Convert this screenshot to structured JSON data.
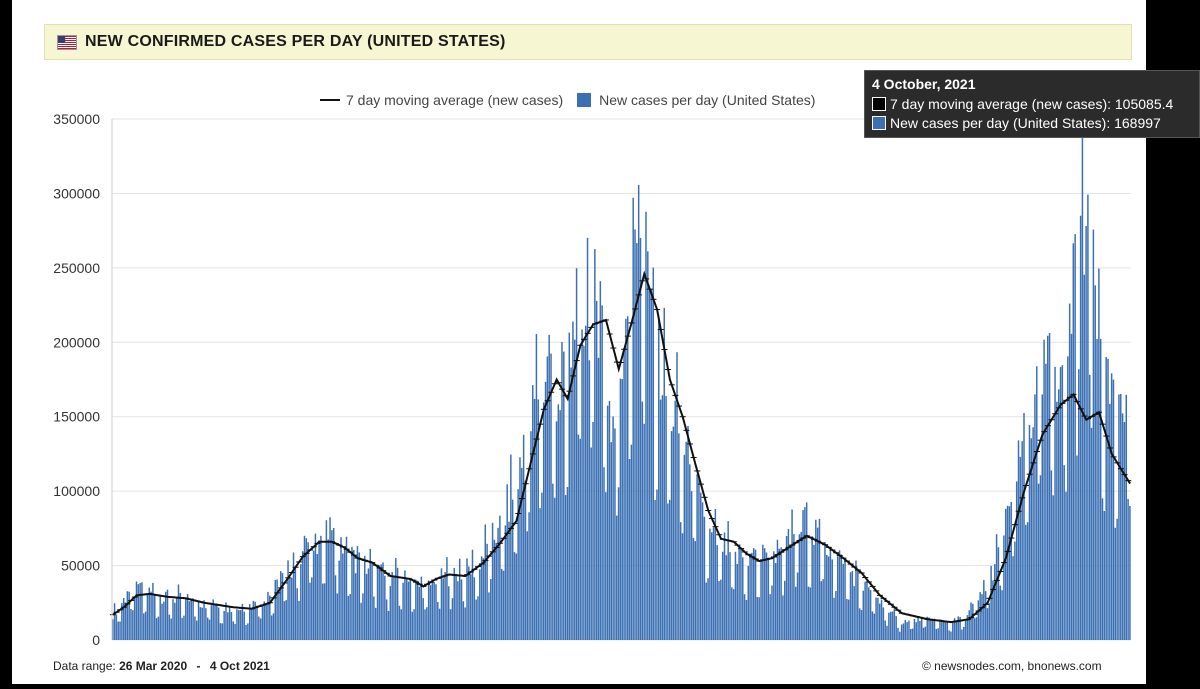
{
  "header": {
    "title": "NEW CONFIRMED CASES PER DAY (UNITED STATES)",
    "flag_icon": "us-flag-icon"
  },
  "legend": {
    "average_label": "7 day moving average (new cases)",
    "daily_label": "New cases per day (United States)"
  },
  "tooltip": {
    "date": "4 October, 2021",
    "average_row": "7 day moving average (new cases): 105085.4",
    "daily_row": "New cases per day (United States): 168997"
  },
  "footer": {
    "range_label": "Data range:",
    "range_start": "26 Mar 2020",
    "range_dash": "-",
    "range_end": "4 Oct 2021",
    "copyright": "©  newsnodes.com, bnonews.com"
  },
  "colors": {
    "bar": "#3a6fb3",
    "bar_edge": "#d8e2f0",
    "average_line": "#111111",
    "title_bg": "#f6f6d2",
    "tooltip_bg": "#2b2b2b"
  },
  "chart_data": {
    "type": "bar",
    "title": "NEW CONFIRMED CASES PER DAY (UNITED STATES)",
    "xlabel": "",
    "ylabel": "",
    "ylim": [
      0,
      350000
    ],
    "y_ticks": [
      0,
      50000,
      100000,
      150000,
      200000,
      250000,
      300000,
      350000
    ],
    "x_range": [
      "2020-03-26",
      "2021-10-04"
    ],
    "grid": true,
    "legend_position": "top",
    "series": [
      {
        "name": "New cases per day (United States)",
        "type": "bar",
        "daily_values_description": "one bar per day from 26 Mar 2020 to 4 Oct 2021",
        "points": [
          [
            "2020-03-26",
            17000
          ],
          [
            "2020-04-04",
            32000
          ],
          [
            "2020-04-10",
            34000
          ],
          [
            "2020-04-24",
            29000
          ],
          [
            "2020-05-15",
            25000
          ],
          [
            "2020-06-05",
            21000
          ],
          [
            "2020-06-20",
            30000
          ],
          [
            "2020-07-01",
            48000
          ],
          [
            "2020-07-10",
            63000
          ],
          [
            "2020-07-17",
            70000
          ],
          [
            "2020-07-24",
            70000
          ],
          [
            "2020-08-05",
            55000
          ],
          [
            "2020-08-20",
            44000
          ],
          [
            "2020-09-05",
            40000
          ],
          [
            "2020-09-12",
            34000
          ],
          [
            "2020-09-26",
            44000
          ],
          [
            "2020-10-10",
            48000
          ],
          [
            "2020-10-24",
            75000
          ],
          [
            "2020-11-06",
            120000
          ],
          [
            "2020-11-13",
            165000
          ],
          [
            "2020-11-20",
            185000
          ],
          [
            "2020-11-27",
            160000
          ],
          [
            "2020-12-04",
            210000
          ],
          [
            "2020-12-10",
            225000
          ],
          [
            "2020-12-18",
            230000
          ],
          [
            "2020-12-25",
            130000
          ],
          [
            "2021-01-02",
            230000
          ],
          [
            "2021-01-08",
            294000
          ],
          [
            "2021-01-15",
            220000
          ],
          [
            "2021-01-22",
            170000
          ],
          [
            "2021-01-29",
            145000
          ],
          [
            "2021-02-05",
            120000
          ],
          [
            "2021-02-15",
            70000
          ],
          [
            "2021-02-22",
            65000
          ],
          [
            "2021-03-01",
            55000
          ],
          [
            "2021-03-15",
            55000
          ],
          [
            "2021-04-01",
            65000
          ],
          [
            "2021-04-10",
            80000
          ],
          [
            "2021-04-20",
            65000
          ],
          [
            "2021-05-01",
            50000
          ],
          [
            "2021-05-15",
            32000
          ],
          [
            "2021-05-31",
            12000
          ],
          [
            "2021-06-15",
            14000
          ],
          [
            "2021-06-28",
            12000
          ],
          [
            "2021-07-05",
            14000
          ],
          [
            "2021-07-15",
            30000
          ],
          [
            "2021-07-25",
            60000
          ],
          [
            "2021-08-05",
            120000
          ],
          [
            "2021-08-15",
            170000
          ],
          [
            "2021-08-24",
            185000
          ],
          [
            "2021-08-31",
            190000
          ],
          [
            "2021-09-07",
            303000
          ],
          [
            "2021-09-14",
            265000
          ],
          [
            "2021-09-21",
            180000
          ],
          [
            "2021-09-28",
            140000
          ],
          [
            "2021-10-04",
            168997
          ]
        ]
      },
      {
        "name": "7 day moving average (new cases)",
        "type": "line",
        "points": [
          [
            "2020-03-26",
            17000
          ],
          [
            "2020-04-01",
            22000
          ],
          [
            "2020-04-08",
            30000
          ],
          [
            "2020-04-15",
            31000
          ],
          [
            "2020-04-25",
            29000
          ],
          [
            "2020-05-05",
            28000
          ],
          [
            "2020-05-15",
            25000
          ],
          [
            "2020-05-31",
            22000
          ],
          [
            "2020-06-10",
            21000
          ],
          [
            "2020-06-20",
            25000
          ],
          [
            "2020-06-29",
            40000
          ],
          [
            "2020-07-08",
            56000
          ],
          [
            "2020-07-17",
            66000
          ],
          [
            "2020-07-24",
            66000
          ],
          [
            "2020-07-31",
            62000
          ],
          [
            "2020-08-07",
            55000
          ],
          [
            "2020-08-15",
            52000
          ],
          [
            "2020-08-25",
            43000
          ],
          [
            "2020-09-05",
            41000
          ],
          [
            "2020-09-12",
            36000
          ],
          [
            "2020-09-19",
            41000
          ],
          [
            "2020-09-26",
            44000
          ],
          [
            "2020-10-05",
            43000
          ],
          [
            "2020-10-15",
            52000
          ],
          [
            "2020-10-24",
            65000
          ],
          [
            "2020-11-02",
            80000
          ],
          [
            "2020-11-10",
            120000
          ],
          [
            "2020-11-17",
            155000
          ],
          [
            "2020-11-24",
            175000
          ],
          [
            "2020-11-30",
            162000
          ],
          [
            "2020-12-07",
            198000
          ],
          [
            "2020-12-14",
            212000
          ],
          [
            "2020-12-21",
            215000
          ],
          [
            "2020-12-28",
            182000
          ],
          [
            "2021-01-04",
            213000
          ],
          [
            "2021-01-11",
            246000
          ],
          [
            "2021-01-18",
            222000
          ],
          [
            "2021-01-25",
            175000
          ],
          [
            "2021-02-01",
            150000
          ],
          [
            "2021-02-08",
            118000
          ],
          [
            "2021-02-15",
            87000
          ],
          [
            "2021-02-22",
            68000
          ],
          [
            "2021-03-01",
            66000
          ],
          [
            "2021-03-08",
            58000
          ],
          [
            "2021-03-15",
            53000
          ],
          [
            "2021-03-22",
            55000
          ],
          [
            "2021-04-01",
            63000
          ],
          [
            "2021-04-10",
            70000
          ],
          [
            "2021-04-20",
            64000
          ],
          [
            "2021-04-30",
            55000
          ],
          [
            "2021-05-10",
            45000
          ],
          [
            "2021-05-20",
            30000
          ],
          [
            "2021-06-01",
            18000
          ],
          [
            "2021-06-15",
            14000
          ],
          [
            "2021-06-28",
            12000
          ],
          [
            "2021-07-08",
            14000
          ],
          [
            "2021-07-18",
            25000
          ],
          [
            "2021-07-28",
            55000
          ],
          [
            "2021-08-07",
            100000
          ],
          [
            "2021-08-17",
            138000
          ],
          [
            "2021-08-27",
            158000
          ],
          [
            "2021-09-03",
            165000
          ],
          [
            "2021-09-10",
            148000
          ],
          [
            "2021-09-17",
            153000
          ],
          [
            "2021-09-24",
            125000
          ],
          [
            "2021-10-04",
            105085.4
          ]
        ]
      }
    ]
  }
}
